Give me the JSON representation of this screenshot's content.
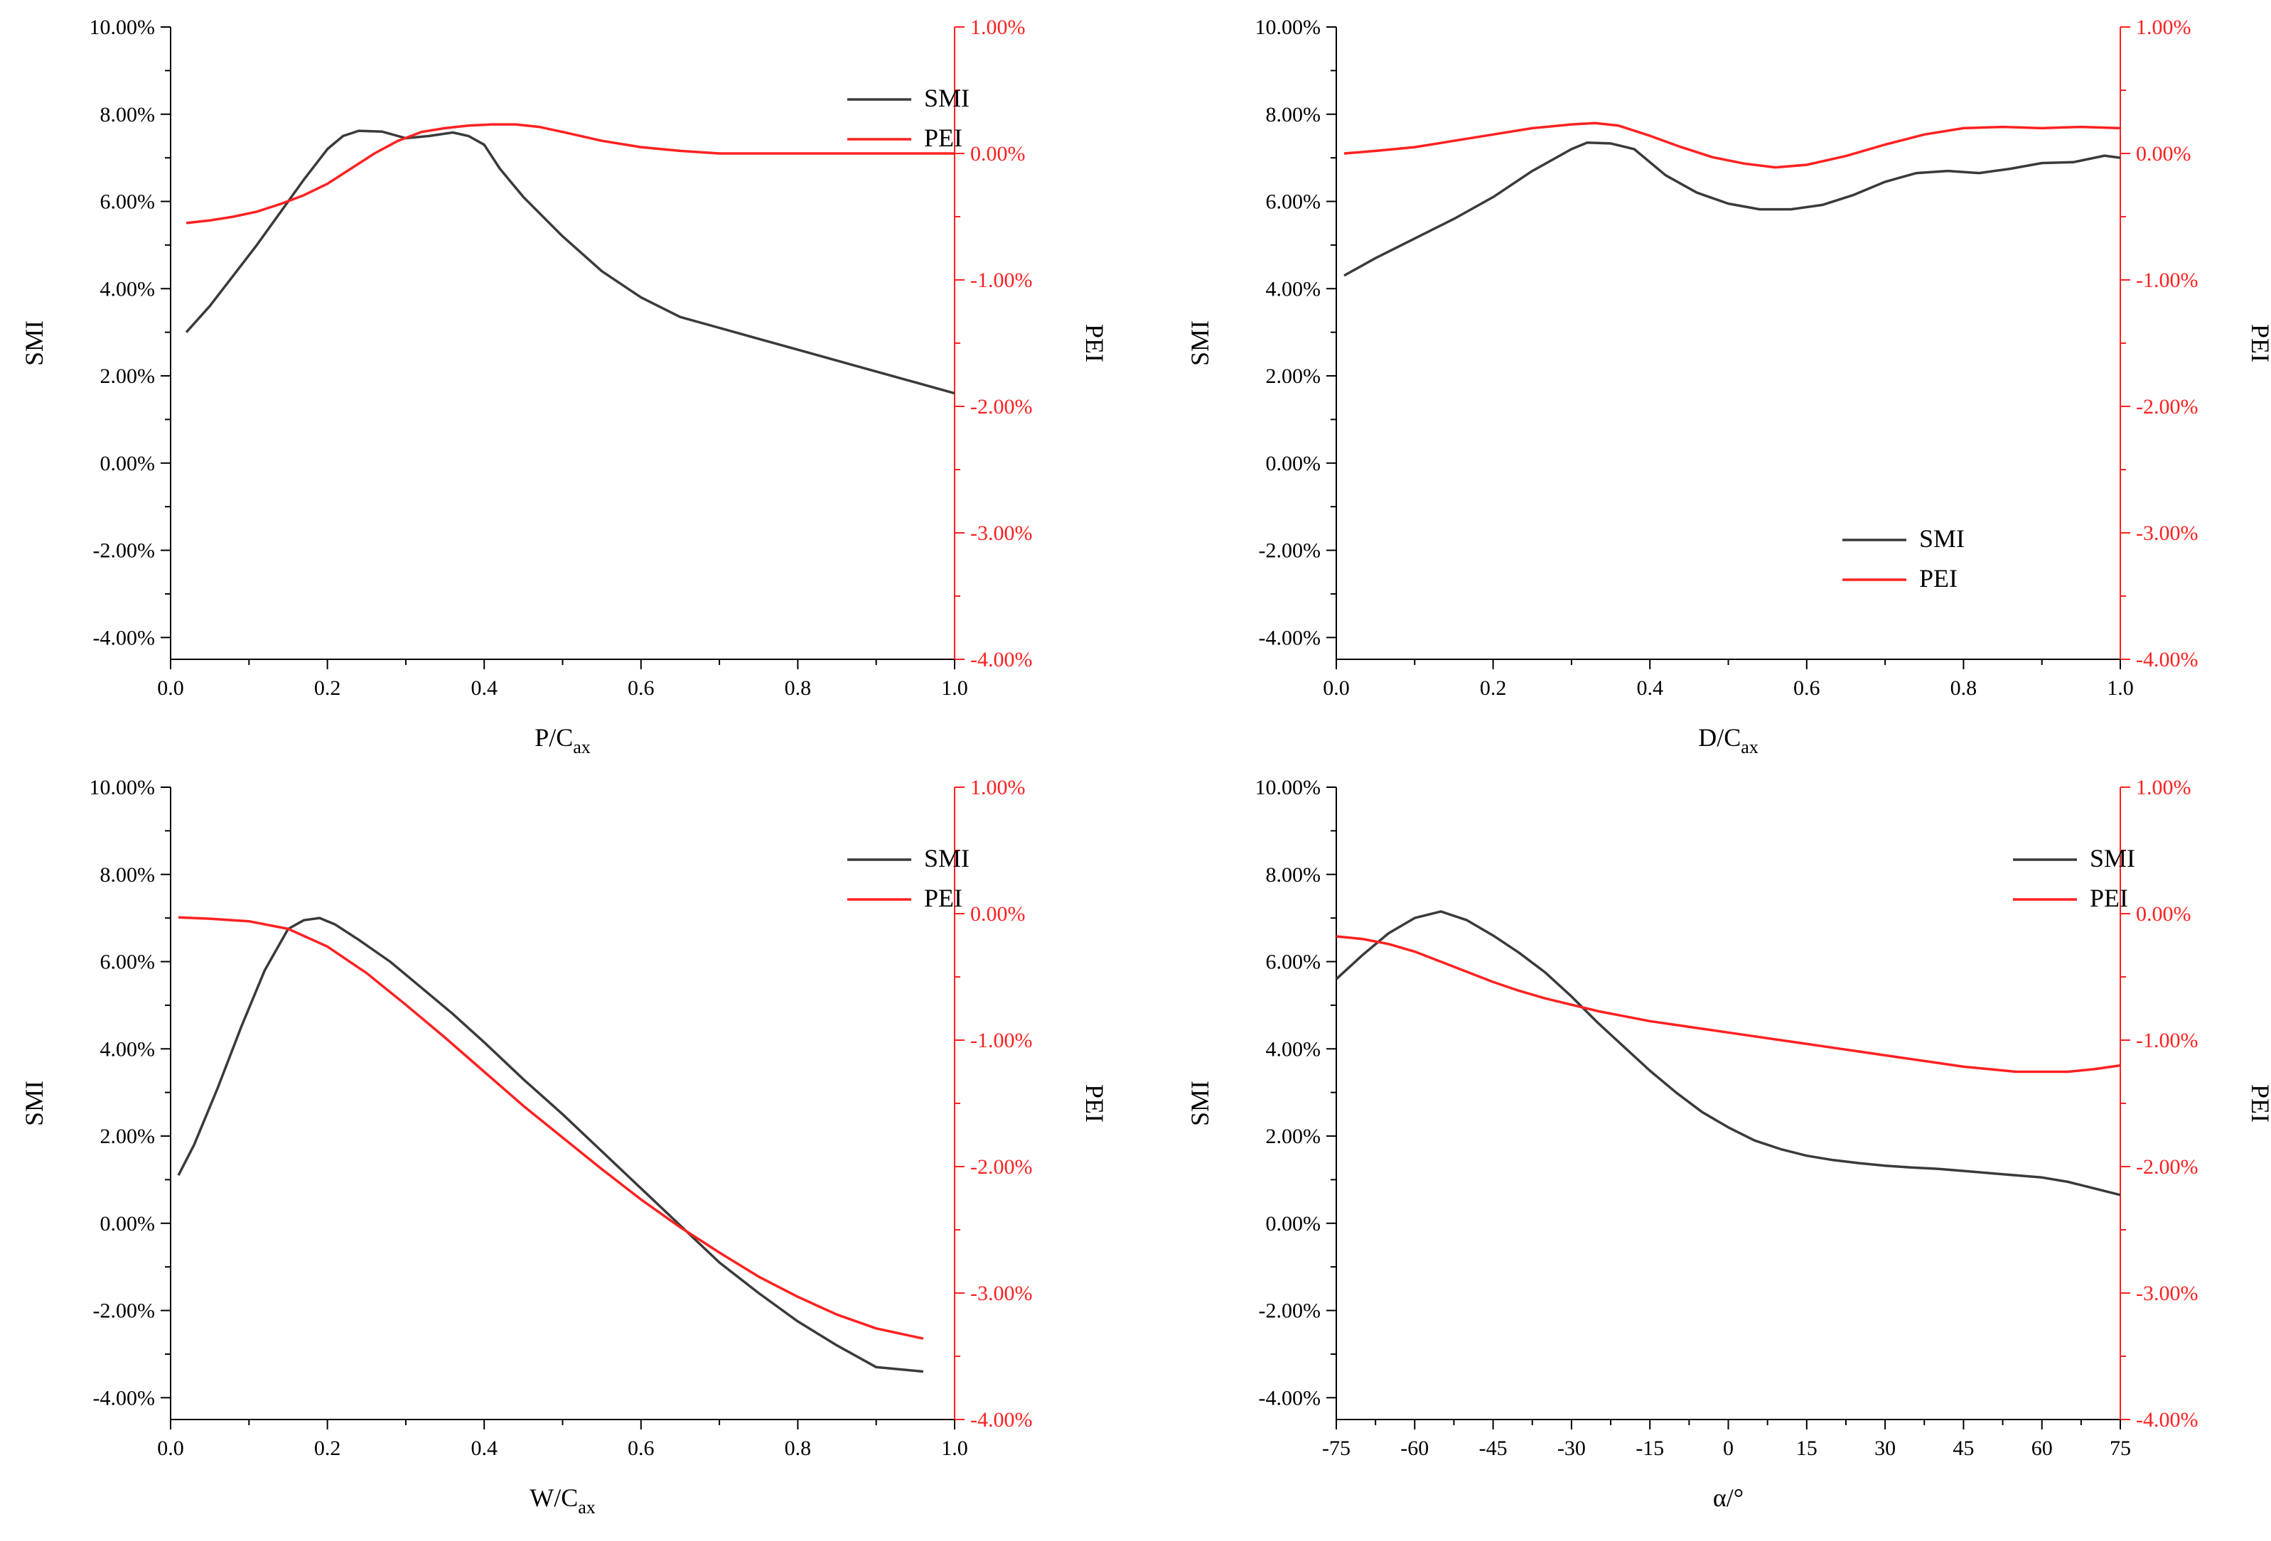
{
  "colors": {
    "smi": "#3a3a3a",
    "pei": "#ff2020",
    "axis": "#000000"
  },
  "chart_data": [
    {
      "type": "line",
      "xlabel_main": "P/C",
      "xlabel_sub": "ax",
      "ylabel_left": "SMI",
      "ylabel_right": "PEI",
      "legend": {
        "position": "top-right",
        "smi": "SMI",
        "pei": "PEI"
      },
      "grid": false,
      "xlim": [
        0,
        1
      ],
      "ylim_left": [
        -4.5,
        10
      ],
      "ylim_right": [
        -4,
        1
      ],
      "x_ticks": [
        "0.0",
        "0.2",
        "0.4",
        "0.6",
        "0.8",
        "1.0"
      ],
      "x_tick_values": [
        0,
        0.2,
        0.4,
        0.6,
        0.8,
        1.0
      ],
      "y_left_ticks": [
        "10.00%",
        "8.00%",
        "6.00%",
        "4.00%",
        "2.00%",
        "0.00%",
        "-2.00%",
        "-4.00%"
      ],
      "y_left_tick_values": [
        10,
        8,
        6,
        4,
        2,
        0,
        -2,
        -4
      ],
      "y_right_ticks": [
        "1.00%",
        "0.00%",
        "-1.00%",
        "-2.00%",
        "-3.00%",
        "-4.00%"
      ],
      "y_right_tick_values": [
        1,
        0,
        -1,
        -2,
        -3,
        -4
      ],
      "series": [
        {
          "name": "SMI",
          "axis": "left",
          "x": [
            0.02,
            0.05,
            0.08,
            0.11,
            0.14,
            0.17,
            0.2,
            0.22,
            0.24,
            0.27,
            0.3,
            0.33,
            0.36,
            0.38,
            0.4,
            0.42,
            0.45,
            0.5,
            0.55,
            0.6,
            0.65,
            0.7,
            0.75,
            0.8,
            0.85,
            0.9,
            0.95,
            1.0
          ],
          "y": [
            3.0,
            3.6,
            4.3,
            5.0,
            5.75,
            6.5,
            7.2,
            7.5,
            7.62,
            7.6,
            7.45,
            7.5,
            7.58,
            7.5,
            7.3,
            6.75,
            6.1,
            5.2,
            4.4,
            3.8,
            3.35,
            3.1,
            2.85,
            2.6,
            2.35,
            2.1,
            1.85,
            1.6
          ]
        },
        {
          "name": "PEI",
          "axis": "right",
          "x": [
            0.02,
            0.05,
            0.08,
            0.11,
            0.14,
            0.17,
            0.2,
            0.23,
            0.26,
            0.29,
            0.32,
            0.35,
            0.38,
            0.41,
            0.44,
            0.47,
            0.5,
            0.55,
            0.6,
            0.65,
            0.7,
            0.8,
            0.9,
            1.0
          ],
          "y": [
            -0.55,
            -0.53,
            -0.5,
            -0.46,
            -0.4,
            -0.33,
            -0.24,
            -0.12,
            0.0,
            0.1,
            0.17,
            0.2,
            0.22,
            0.23,
            0.23,
            0.21,
            0.17,
            0.1,
            0.05,
            0.02,
            0.0,
            0.0,
            0.0,
            0.0
          ]
        }
      ]
    },
    {
      "type": "line",
      "xlabel_main": "D/C",
      "xlabel_sub": "ax",
      "ylabel_left": "SMI",
      "ylabel_right": "PEI",
      "legend": {
        "position": "bottom-right",
        "smi": "SMI",
        "pei": "PEI"
      },
      "grid": false,
      "xlim": [
        0,
        1
      ],
      "ylim_left": [
        -4.5,
        10
      ],
      "ylim_right": [
        -4,
        1
      ],
      "x_ticks": [
        "0.0",
        "0.2",
        "0.4",
        "0.6",
        "0.8",
        "1.0"
      ],
      "x_tick_values": [
        0,
        0.2,
        0.4,
        0.6,
        0.8,
        1.0
      ],
      "y_left_ticks": [
        "10.00%",
        "8.00%",
        "6.00%",
        "4.00%",
        "2.00%",
        "0.00%",
        "-2.00%",
        "-4.00%"
      ],
      "y_left_tick_values": [
        10,
        8,
        6,
        4,
        2,
        0,
        -2,
        -4
      ],
      "y_right_ticks": [
        "1.00%",
        "0.00%",
        "-1.00%",
        "-2.00%",
        "-3.00%",
        "-4.00%"
      ],
      "y_right_tick_values": [
        1,
        0,
        -1,
        -2,
        -3,
        -4
      ],
      "series": [
        {
          "name": "SMI",
          "axis": "left",
          "x": [
            0.01,
            0.05,
            0.1,
            0.15,
            0.2,
            0.25,
            0.3,
            0.32,
            0.35,
            0.38,
            0.42,
            0.46,
            0.5,
            0.54,
            0.58,
            0.62,
            0.66,
            0.7,
            0.74,
            0.78,
            0.82,
            0.86,
            0.9,
            0.94,
            0.98,
            1.0
          ],
          "y": [
            4.3,
            4.7,
            5.15,
            5.6,
            6.1,
            6.7,
            7.2,
            7.35,
            7.33,
            7.2,
            6.6,
            6.2,
            5.95,
            5.82,
            5.82,
            5.92,
            6.15,
            6.45,
            6.65,
            6.7,
            6.65,
            6.75,
            6.88,
            6.9,
            7.05,
            7.0
          ]
        },
        {
          "name": "PEI",
          "axis": "right",
          "x": [
            0.01,
            0.05,
            0.1,
            0.15,
            0.2,
            0.25,
            0.3,
            0.33,
            0.36,
            0.4,
            0.44,
            0.48,
            0.52,
            0.56,
            0.6,
            0.65,
            0.7,
            0.75,
            0.8,
            0.85,
            0.9,
            0.95,
            1.0
          ],
          "y": [
            0.0,
            0.02,
            0.05,
            0.1,
            0.15,
            0.2,
            0.23,
            0.24,
            0.22,
            0.14,
            0.05,
            -0.03,
            -0.08,
            -0.11,
            -0.09,
            -0.02,
            0.07,
            0.15,
            0.2,
            0.21,
            0.2,
            0.21,
            0.2
          ]
        }
      ]
    },
    {
      "type": "line",
      "xlabel_main": "W/C",
      "xlabel_sub": "ax",
      "ylabel_left": "SMI",
      "ylabel_right": "PEI",
      "legend": {
        "position": "top-right",
        "smi": "SMI",
        "pei": "PEI"
      },
      "grid": false,
      "xlim": [
        0,
        1
      ],
      "ylim_left": [
        -4.5,
        10
      ],
      "ylim_right": [
        -4,
        1
      ],
      "x_ticks": [
        "0.0",
        "0.2",
        "0.4",
        "0.6",
        "0.8",
        "1.0"
      ],
      "x_tick_values": [
        0,
        0.2,
        0.4,
        0.6,
        0.8,
        1.0
      ],
      "y_left_ticks": [
        "10.00%",
        "8.00%",
        "6.00%",
        "4.00%",
        "2.00%",
        "0.00%",
        "-2.00%",
        "-4.00%"
      ],
      "y_left_tick_values": [
        10,
        8,
        6,
        4,
        2,
        0,
        -2,
        -4
      ],
      "y_right_ticks": [
        "1.00%",
        "0.00%",
        "-1.00%",
        "-2.00%",
        "-3.00%",
        "-4.00%"
      ],
      "y_right_tick_values": [
        1,
        0,
        -1,
        -2,
        -3,
        -4
      ],
      "series": [
        {
          "name": "SMI",
          "axis": "left",
          "x": [
            0.01,
            0.03,
            0.06,
            0.09,
            0.12,
            0.15,
            0.17,
            0.19,
            0.21,
            0.24,
            0.28,
            0.32,
            0.36,
            0.4,
            0.45,
            0.5,
            0.55,
            0.6,
            0.65,
            0.7,
            0.75,
            0.8,
            0.85,
            0.9,
            0.96
          ],
          "y": [
            1.1,
            1.8,
            3.1,
            4.5,
            5.8,
            6.75,
            6.95,
            7.0,
            6.85,
            6.5,
            6.0,
            5.4,
            4.8,
            4.15,
            3.3,
            2.5,
            1.65,
            0.8,
            -0.05,
            -0.9,
            -1.6,
            -2.25,
            -2.8,
            -3.3,
            -3.4
          ]
        },
        {
          "name": "PEI",
          "axis": "right",
          "x": [
            0.01,
            0.05,
            0.1,
            0.15,
            0.2,
            0.25,
            0.3,
            0.35,
            0.4,
            0.45,
            0.5,
            0.55,
            0.6,
            0.65,
            0.7,
            0.75,
            0.8,
            0.85,
            0.9,
            0.96
          ],
          "y": [
            -0.03,
            -0.04,
            -0.06,
            -0.12,
            -0.26,
            -0.47,
            -0.72,
            -0.98,
            -1.25,
            -1.52,
            -1.77,
            -2.02,
            -2.26,
            -2.48,
            -2.68,
            -2.87,
            -3.03,
            -3.17,
            -3.28,
            -3.36
          ]
        }
      ]
    },
    {
      "type": "line",
      "xlabel_main": "α/°",
      "xlabel_sub": "",
      "ylabel_left": "SMI",
      "ylabel_right": "PEI",
      "legend": {
        "position": "top-right",
        "smi": "SMI",
        "pei": "PEI"
      },
      "grid": false,
      "xlim": [
        -75,
        75
      ],
      "ylim_left": [
        -4.5,
        10
      ],
      "ylim_right": [
        -4,
        1
      ],
      "x_ticks": [
        "-75",
        "-60",
        "-45",
        "-30",
        "-15",
        "0",
        "15",
        "30",
        "45",
        "60",
        "75"
      ],
      "x_tick_values": [
        -75,
        -60,
        -45,
        -30,
        -15,
        0,
        15,
        30,
        45,
        60,
        75
      ],
      "y_left_ticks": [
        "10.00%",
        "8.00%",
        "6.00%",
        "4.00%",
        "2.00%",
        "0.00%",
        "-2.00%",
        "-4.00%"
      ],
      "y_left_tick_values": [
        10,
        8,
        6,
        4,
        2,
        0,
        -2,
        -4
      ],
      "y_right_ticks": [
        "1.00%",
        "0.00%",
        "-1.00%",
        "-2.00%",
        "-3.00%",
        "-4.00%"
      ],
      "y_right_tick_values": [
        1,
        0,
        -1,
        -2,
        -3,
        -4
      ],
      "series": [
        {
          "name": "SMI",
          "axis": "left",
          "x": [
            -75,
            -70,
            -65,
            -60,
            -55,
            -50,
            -45,
            -40,
            -35,
            -30,
            -25,
            -20,
            -15,
            -10,
            -5,
            0,
            5,
            10,
            15,
            20,
            25,
            30,
            35,
            40,
            45,
            50,
            55,
            60,
            65,
            70,
            75
          ],
          "y": [
            5.6,
            6.15,
            6.65,
            7.0,
            7.15,
            6.95,
            6.6,
            6.2,
            5.75,
            5.2,
            4.6,
            4.05,
            3.5,
            3.0,
            2.55,
            2.2,
            1.9,
            1.7,
            1.55,
            1.45,
            1.38,
            1.32,
            1.28,
            1.25,
            1.2,
            1.15,
            1.1,
            1.05,
            0.95,
            0.8,
            0.65
          ]
        },
        {
          "name": "PEI",
          "axis": "right",
          "x": [
            -75,
            -70,
            -65,
            -60,
            -55,
            -50,
            -45,
            -40,
            -35,
            -30,
            -25,
            -20,
            -15,
            -10,
            -5,
            0,
            5,
            10,
            15,
            20,
            25,
            30,
            35,
            40,
            45,
            50,
            55,
            60,
            65,
            70,
            75
          ],
          "y": [
            -0.18,
            -0.2,
            -0.24,
            -0.3,
            -0.38,
            -0.46,
            -0.54,
            -0.61,
            -0.67,
            -0.72,
            -0.77,
            -0.81,
            -0.85,
            -0.88,
            -0.91,
            -0.94,
            -0.97,
            -1.0,
            -1.03,
            -1.06,
            -1.09,
            -1.12,
            -1.15,
            -1.18,
            -1.21,
            -1.23,
            -1.25,
            -1.25,
            -1.25,
            -1.23,
            -1.2
          ]
        }
      ]
    }
  ]
}
